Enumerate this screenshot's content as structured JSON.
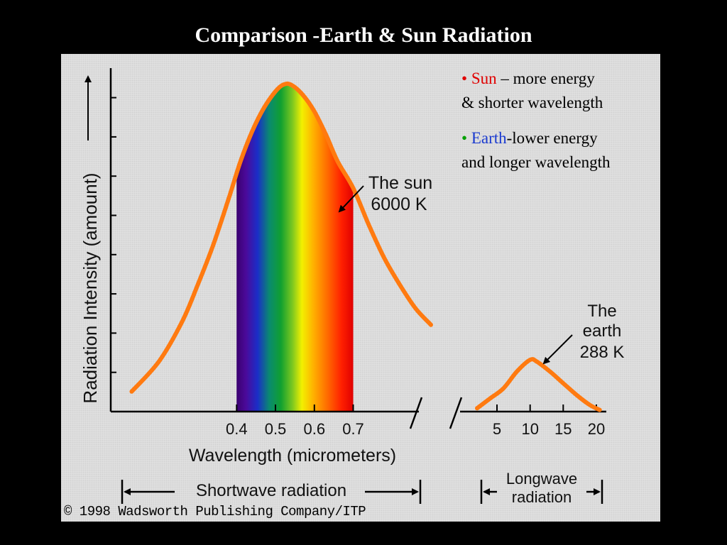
{
  "slide_title": "Comparison -Earth & Sun Radiation",
  "notes": [
    {
      "bullet": "•",
      "keyword": "Sun",
      "rest_line1": " – more energy",
      "rest_line2": "& shorter wavelength"
    },
    {
      "bullet": "•",
      "keyword": "Earth",
      "rest_line1": "-lower energy",
      "rest_line2": "and longer wavelength"
    }
  ],
  "credit": "© 1998 Wadsworth Publishing Company/ITP",
  "colors": {
    "curve": "#ff7a10",
    "sun_keyword": "#e00000",
    "earth_keyword": "#1a3ad0",
    "earth_bullet": "#00a000"
  },
  "chart_data": {
    "type": "line",
    "ylabel": "Radiation Intensity (amount)",
    "xlabel": "Wavelength (micrometers)",
    "y_tick_count": 8,
    "shortwave": {
      "x_ticks": [
        "0.4",
        "0.5",
        "0.6",
        "0.7"
      ],
      "visible_band": [
        0.4,
        0.7
      ],
      "series": {
        "line1": "The sun",
        "line2": "6000 K",
        "x": [
          0.13,
          0.2,
          0.26,
          0.3,
          0.34,
          0.38,
          0.41,
          0.44,
          0.47,
          0.5,
          0.52,
          0.54,
          0.57,
          0.6,
          0.63,
          0.66,
          0.7,
          0.74,
          0.78,
          0.82,
          0.86,
          0.9
        ],
        "y": [
          0.06,
          0.15,
          0.27,
          0.38,
          0.5,
          0.64,
          0.75,
          0.84,
          0.91,
          0.96,
          0.98,
          0.98,
          0.95,
          0.9,
          0.83,
          0.75,
          0.67,
          0.56,
          0.46,
          0.38,
          0.31,
          0.26
        ]
      }
    },
    "longwave": {
      "x_ticks": [
        "5",
        "10",
        "15",
        "20"
      ],
      "series": {
        "line1": "The",
        "line2": "earth",
        "line3": "288 K",
        "x": [
          2,
          4,
          6,
          8,
          10,
          11,
          13,
          15,
          17,
          19,
          20.5
        ],
        "y": [
          0.01,
          0.04,
          0.07,
          0.12,
          0.155,
          0.15,
          0.12,
          0.085,
          0.05,
          0.02,
          0.005
        ]
      }
    },
    "shortwave_label": "Shortwave radiation",
    "longwave_label_line1": "Longwave",
    "longwave_label_line2": "radiation"
  }
}
